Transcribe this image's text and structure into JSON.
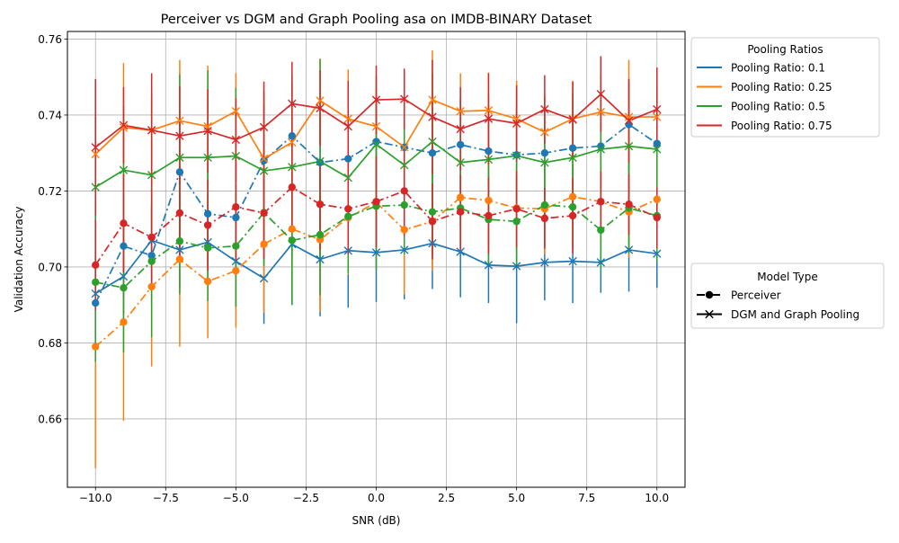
{
  "chart_data": {
    "type": "line",
    "title": "Perceiver vs DGM and Graph Pooling asa on IMDB-BINARY Dataset",
    "xlabel": "SNR (dB)",
    "ylabel": "Validation Accuracy",
    "xlim": [
      -11.0,
      11.0
    ],
    "ylim": [
      0.642,
      0.762
    ],
    "xticks": [
      -10.0,
      -7.5,
      -5.0,
      -2.5,
      0.0,
      2.5,
      5.0,
      7.5,
      10.0
    ],
    "xtick_labels": [
      "−10.0",
      "−7.5",
      "−5.0",
      "−2.5",
      "0.0",
      "2.5",
      "5.0",
      "7.5",
      "10.0"
    ],
    "yticks": [
      0.66,
      0.68,
      0.7,
      0.72,
      0.74,
      0.76
    ],
    "ytick_labels": [
      "0.66",
      "0.68",
      "0.70",
      "0.72",
      "0.74",
      "0.76"
    ],
    "grid": true,
    "x": [
      -10,
      -9,
      -8,
      -7,
      -6,
      -5,
      -4,
      -3,
      -2,
      -1,
      0,
      1,
      2,
      3,
      4,
      5,
      6,
      7,
      8,
      9,
      10
    ],
    "legend_ratios": {
      "title": "Pooling Ratios",
      "placement": "outside-right-top",
      "entries": [
        {
          "label": "Pooling Ratio: 0.1",
          "color": "#1f77b4"
        },
        {
          "label": "Pooling Ratio: 0.25",
          "color": "#ff7f0e"
        },
        {
          "label": "Pooling Ratio: 0.5",
          "color": "#2ca02c"
        },
        {
          "label": "Pooling Ratio: 0.75",
          "color": "#d62728"
        }
      ]
    },
    "legend_models": {
      "title": "Model Type",
      "placement": "outside-right-middle",
      "entries": [
        {
          "label": "Perceiver",
          "marker": "circle",
          "linestyle": "dashdot"
        },
        {
          "label": "DGM and Graph Pooling",
          "marker": "x",
          "linestyle": "solid"
        }
      ]
    },
    "series": [
      {
        "ratio": 0.1,
        "model": "Perceiver",
        "color": "#1f77b4",
        "marker": "circle",
        "linestyle": "dashdot",
        "values": [
          0.6905,
          0.7055,
          0.703,
          0.725,
          0.714,
          0.713,
          0.728,
          0.7345,
          0.7275,
          0.7285,
          0.733,
          0.7315,
          0.73,
          0.7322,
          0.7305,
          0.7295,
          0.73,
          0.7313,
          0.7318,
          0.7375,
          0.7325
        ],
        "errors": [
          0.012,
          0.014,
          0.013,
          0.016,
          0.014,
          0.014,
          0.015,
          0.014,
          0.013,
          0.013,
          0.012,
          0.012,
          0.012,
          0.012,
          0.012,
          0.012,
          0.012,
          0.012,
          0.012,
          0.012,
          0.012
        ]
      },
      {
        "ratio": 0.1,
        "model": "DGM and Graph Pooling",
        "color": "#1f77b4",
        "marker": "x",
        "linestyle": "solid",
        "values": [
          0.693,
          0.6975,
          0.707,
          0.7045,
          0.7065,
          0.7015,
          0.697,
          0.706,
          0.702,
          0.7043,
          0.7038,
          0.7045,
          0.7062,
          0.704,
          0.7005,
          0.7002,
          0.7012,
          0.7015,
          0.7012,
          0.7045,
          0.7035
        ],
        "errors": [
          0.01,
          0.01,
          0.01,
          0.01,
          0.01,
          0.012,
          0.012,
          0.016,
          0.015,
          0.015,
          0.013,
          0.013,
          0.012,
          0.012,
          0.01,
          0.015,
          0.01,
          0.011,
          0.008,
          0.011,
          0.009
        ]
      },
      {
        "ratio": 0.25,
        "model": "Perceiver",
        "color": "#ff7f0e",
        "marker": "circle",
        "linestyle": "dashdot",
        "values": [
          0.679,
          0.6855,
          0.6948,
          0.702,
          0.6962,
          0.699,
          0.706,
          0.71,
          0.7072,
          0.713,
          0.717,
          0.7098,
          0.712,
          0.7183,
          0.7175,
          0.7155,
          0.7153,
          0.7185,
          0.7172,
          0.7145,
          0.7178
        ],
        "errors": [
          0.032,
          0.026,
          0.021,
          0.023,
          0.015,
          0.015,
          0.018,
          0.017,
          0.019,
          0.015,
          0.012,
          0.017,
          0.013,
          0.013,
          0.012,
          0.012,
          0.012,
          0.012,
          0.012,
          0.012,
          0.012
        ]
      },
      {
        "ratio": 0.25,
        "model": "DGM and Graph Pooling",
        "color": "#ff7f0e",
        "marker": "x",
        "linestyle": "solid",
        "values": [
          0.7297,
          0.7367,
          0.736,
          0.7385,
          0.737,
          0.741,
          0.7285,
          0.7328,
          0.7438,
          0.739,
          0.737,
          0.7315,
          0.744,
          0.741,
          0.7412,
          0.739,
          0.7355,
          0.739,
          0.7408,
          0.7395,
          0.7395
        ],
        "errors": [
          0.01,
          0.017,
          0.01,
          0.016,
          0.016,
          0.01,
          0.01,
          0.01,
          0.011,
          0.013,
          0.01,
          0.01,
          0.013,
          0.01,
          0.01,
          0.01,
          0.01,
          0.01,
          0.01,
          0.015,
          0.013
        ]
      },
      {
        "ratio": 0.5,
        "model": "Perceiver",
        "color": "#2ca02c",
        "marker": "circle",
        "linestyle": "dashdot",
        "values": [
          0.696,
          0.6945,
          0.7015,
          0.7068,
          0.705,
          0.7055,
          0.7143,
          0.707,
          0.7085,
          0.7133,
          0.716,
          0.7163,
          0.7145,
          0.7155,
          0.7125,
          0.712,
          0.7163,
          0.7158,
          0.7097,
          0.7155,
          0.7135
        ],
        "errors": [
          0.021,
          0.017,
          0.02,
          0.014,
          0.014,
          0.016,
          0.014,
          0.017,
          0.016,
          0.015,
          0.017,
          0.013,
          0.011,
          0.011,
          0.012,
          0.012,
          0.011,
          0.011,
          0.011,
          0.012,
          0.012
        ]
      },
      {
        "ratio": 0.5,
        "model": "DGM and Graph Pooling",
        "color": "#2ca02c",
        "marker": "x",
        "linestyle": "solid",
        "values": [
          0.721,
          0.7255,
          0.7242,
          0.7288,
          0.7288,
          0.7292,
          0.7253,
          0.7263,
          0.7278,
          0.7235,
          0.7323,
          0.7268,
          0.733,
          0.7275,
          0.7283,
          0.7293,
          0.7275,
          0.7288,
          0.731,
          0.7318,
          0.731
        ],
        "errors": [
          0.02,
          0.017,
          0.021,
          0.022,
          0.023,
          0.018,
          0.021,
          0.024,
          0.027,
          0.018,
          0.018,
          0.017,
          0.018,
          0.017,
          0.017,
          0.017,
          0.017,
          0.017,
          0.017,
          0.017,
          0.017
        ]
      },
      {
        "ratio": 0.75,
        "model": "Perceiver",
        "color": "#d62728",
        "marker": "circle",
        "linestyle": "dashdot",
        "values": [
          0.7005,
          0.7115,
          0.7078,
          0.7142,
          0.711,
          0.7158,
          0.7142,
          0.721,
          0.7165,
          0.7153,
          0.7172,
          0.72,
          0.712,
          0.7145,
          0.7135,
          0.7153,
          0.7128,
          0.7135,
          0.7172,
          0.7165,
          0.713
        ],
        "errors": [
          0.012,
          0.013,
          0.013,
          0.012,
          0.012,
          0.014,
          0.012,
          0.012,
          0.012,
          0.012,
          0.012,
          0.012,
          0.01,
          0.01,
          0.01,
          0.01,
          0.008,
          0.01,
          0.008,
          0.008,
          0.008
        ]
      },
      {
        "ratio": 0.75,
        "model": "DGM and Graph Pooling",
        "color": "#d62728",
        "marker": "x",
        "linestyle": "solid",
        "values": [
          0.7315,
          0.7373,
          0.736,
          0.7345,
          0.7358,
          0.7335,
          0.7368,
          0.743,
          0.7418,
          0.737,
          0.744,
          0.7442,
          0.7395,
          0.7363,
          0.739,
          0.7378,
          0.7415,
          0.7388,
          0.7455,
          0.7385,
          0.7415
        ],
        "errors": [
          0.018,
          0.01,
          0.015,
          0.013,
          0.011,
          0.011,
          0.012,
          0.011,
          0.01,
          0.012,
          0.009,
          0.008,
          0.015,
          0.011,
          0.012,
          0.01,
          0.009,
          0.01,
          0.01,
          0.011,
          0.011
        ]
      }
    ]
  }
}
